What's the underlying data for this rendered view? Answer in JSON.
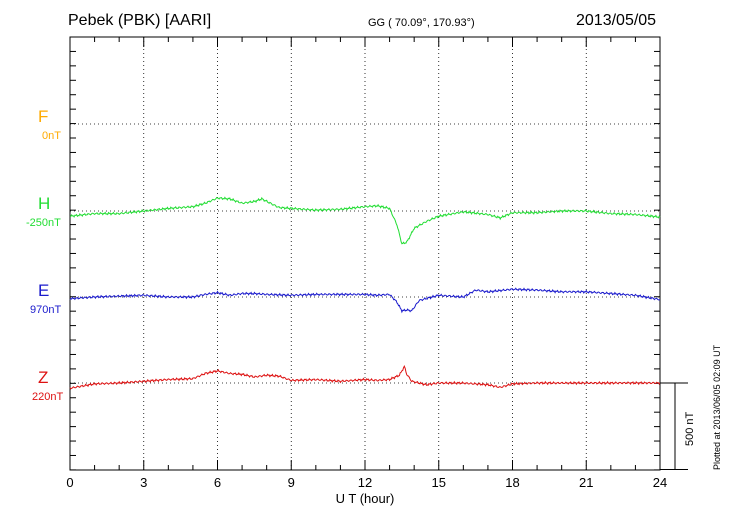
{
  "header": {
    "station": "Pebek (PBK)  [AARI]",
    "coords": "GG ( 70.09°, 170.93°)",
    "date": "2013/05/05"
  },
  "footer": {
    "plotted": "Plotted at 2013/06/05 02:09 UT"
  },
  "chart_data": {
    "type": "line",
    "title": "Pebek (PBK)  [AARI]",
    "xlabel": "U T (hour)",
    "ylabel": "",
    "xlim": [
      0,
      24
    ],
    "xticks": [
      0,
      3,
      6,
      9,
      12,
      15,
      18,
      21,
      24
    ],
    "grid": true,
    "scale_bar": {
      "value": 500,
      "label": "500 nT"
    },
    "series": [
      {
        "name": "F",
        "baseline_label": "0nT",
        "color": "#ffaa00",
        "x": [],
        "y": []
      },
      {
        "name": "H",
        "baseline_label": "-250nT",
        "color": "#22dd33",
        "x": [
          0,
          1,
          2,
          3,
          4,
          5,
          5.5,
          6,
          6.5,
          7,
          7.5,
          7.8,
          8.5,
          9,
          10,
          11,
          12,
          12.5,
          13,
          13.3,
          13.5,
          13.7,
          14,
          14.5,
          15,
          16,
          17,
          17.5,
          18,
          19,
          20,
          21,
          22,
          23,
          24
        ],
        "y": [
          -30,
          -15,
          -15,
          0,
          15,
          25,
          45,
          75,
          70,
          45,
          55,
          70,
          20,
          15,
          5,
          10,
          25,
          30,
          15,
          -80,
          -190,
          -180,
          -100,
          -60,
          -30,
          -5,
          -20,
          -40,
          -10,
          -10,
          0,
          0,
          -15,
          -20,
          -35
        ]
      },
      {
        "name": "E",
        "baseline_label": "970nT",
        "color": "#1a1acc",
        "x": [
          0,
          1,
          2,
          3,
          4,
          5,
          5.5,
          6,
          6.5,
          7,
          7.5,
          8,
          9,
          10,
          11,
          12,
          12.5,
          13,
          13.3,
          13.5,
          13.7,
          13.9,
          14.2,
          15,
          16,
          16.5,
          17,
          18,
          19,
          20,
          21,
          22,
          23,
          24
        ],
        "y": [
          -10,
          0,
          5,
          10,
          0,
          0,
          15,
          25,
          10,
          20,
          20,
          15,
          10,
          15,
          15,
          15,
          10,
          15,
          -30,
          -80,
          -75,
          -80,
          -20,
          10,
          0,
          40,
          30,
          45,
          40,
          30,
          30,
          20,
          10,
          -15
        ]
      },
      {
        "name": "Z",
        "baseline_label": "220nT",
        "color": "#dd1111",
        "x": [
          0,
          1,
          2,
          3,
          4,
          5,
          5.5,
          6,
          6.5,
          7,
          7.5,
          8,
          8.5,
          9,
          10,
          11,
          12,
          12.5,
          13,
          13.4,
          13.6,
          13.7,
          13.9,
          14.5,
          15,
          16,
          17,
          17.5,
          18,
          19,
          20,
          21,
          22,
          23,
          24
        ],
        "y": [
          -30,
          -5,
          0,
          10,
          20,
          25,
          55,
          70,
          55,
          50,
          35,
          45,
          40,
          15,
          20,
          10,
          20,
          15,
          20,
          45,
          95,
          50,
          10,
          -10,
          0,
          0,
          -10,
          -25,
          -5,
          0,
          0,
          0,
          0,
          0,
          0
        ]
      }
    ]
  }
}
